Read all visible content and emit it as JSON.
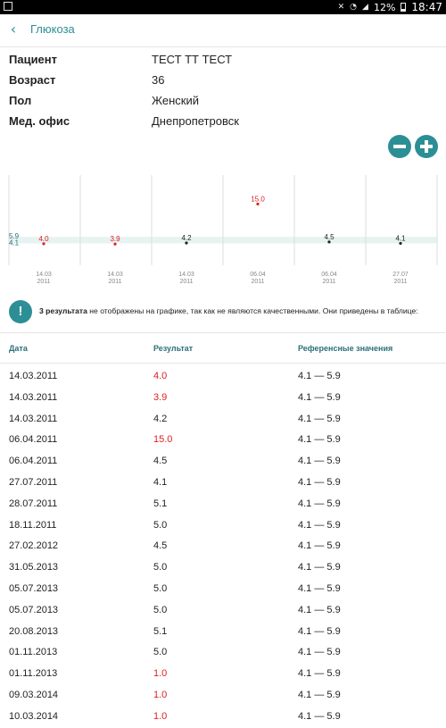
{
  "status_bar": {
    "time": "18:47",
    "battery": "12%"
  },
  "header": {
    "title": "Глюкоза"
  },
  "patient": [
    {
      "label": "Пациент",
      "value": "ТЕСТ ТТ ТЕСТ"
    },
    {
      "label": "Возраст",
      "value": "36"
    },
    {
      "label": "Пол",
      "value": "Женский"
    },
    {
      "label": "Мед. офис",
      "value": "Днепропетровск"
    }
  ],
  "colors": {
    "accent": "#2b8f95",
    "abnormal": "#e02020",
    "normal": "#222222",
    "range_band": "#e6f3f1"
  },
  "chart_data": {
    "type": "scatter",
    "reference_range": [
      4.1,
      5.9
    ],
    "reference_labels": [
      "5.9",
      "4.1"
    ],
    "ylim": [
      0,
      20
    ],
    "points": [
      {
        "date": "14.03",
        "year": "2011",
        "value": 4.0,
        "label": "4.0",
        "abnormal": true
      },
      {
        "date": "14.03",
        "year": "2011",
        "value": 3.9,
        "label": "3.9",
        "abnormal": true
      },
      {
        "date": "14.03",
        "year": "2011",
        "value": 4.2,
        "label": "4.2",
        "abnormal": false
      },
      {
        "date": "06.04",
        "year": "2011",
        "value": 15.0,
        "label": "15.0",
        "abnormal": true
      },
      {
        "date": "06.04",
        "year": "2011",
        "value": 4.5,
        "label": "4.5",
        "abnormal": false
      },
      {
        "date": "27.07",
        "year": "2011",
        "value": 4.1,
        "label": "4.1",
        "abnormal": false
      }
    ]
  },
  "note": {
    "bold": "3 результата",
    "text": " не отображены на графике, так как не являются качественными. Они приведены в таблице:"
  },
  "table": {
    "headers": [
      "Дата",
      "Результат",
      "Референсные значения"
    ],
    "rows": [
      {
        "date": "14.03.2011",
        "result": "4.0",
        "ref": "4.1 — 5.9",
        "abnormal": true
      },
      {
        "date": "14.03.2011",
        "result": "3.9",
        "ref": "4.1 — 5.9",
        "abnormal": true
      },
      {
        "date": "14.03.2011",
        "result": "4.2",
        "ref": "4.1 — 5.9",
        "abnormal": false
      },
      {
        "date": "06.04.2011",
        "result": "15.0",
        "ref": "4.1 — 5.9",
        "abnormal": true
      },
      {
        "date": "06.04.2011",
        "result": "4.5",
        "ref": "4.1 — 5.9",
        "abnormal": false
      },
      {
        "date": "27.07.2011",
        "result": "4.1",
        "ref": "4.1 — 5.9",
        "abnormal": false
      },
      {
        "date": "28.07.2011",
        "result": "5.1",
        "ref": "4.1 — 5.9",
        "abnormal": false
      },
      {
        "date": "18.11.2011",
        "result": "5.0",
        "ref": "4.1 — 5.9",
        "abnormal": false
      },
      {
        "date": "27.02.2012",
        "result": "4.5",
        "ref": "4.1 — 5.9",
        "abnormal": false
      },
      {
        "date": "31.05.2013",
        "result": "5.0",
        "ref": "4.1 — 5.9",
        "abnormal": false
      },
      {
        "date": "05.07.2013",
        "result": "5.0",
        "ref": "4.1 — 5.9",
        "abnormal": false
      },
      {
        "date": "05.07.2013",
        "result": "5.0",
        "ref": "4.1 — 5.9",
        "abnormal": false
      },
      {
        "date": "20.08.2013",
        "result": "5.1",
        "ref": "4.1 — 5.9",
        "abnormal": false
      },
      {
        "date": "01.11.2013",
        "result": "5.0",
        "ref": "4.1 — 5.9",
        "abnormal": false
      },
      {
        "date": "01.11.2013",
        "result": "1.0",
        "ref": "4.1 — 5.9",
        "abnormal": true
      },
      {
        "date": "09.03.2014",
        "result": "1.0",
        "ref": "4.1 — 5.9",
        "abnormal": true
      },
      {
        "date": "10.03.2014",
        "result": "1.0",
        "ref": "4.1 — 5.9",
        "abnormal": true
      }
    ]
  }
}
